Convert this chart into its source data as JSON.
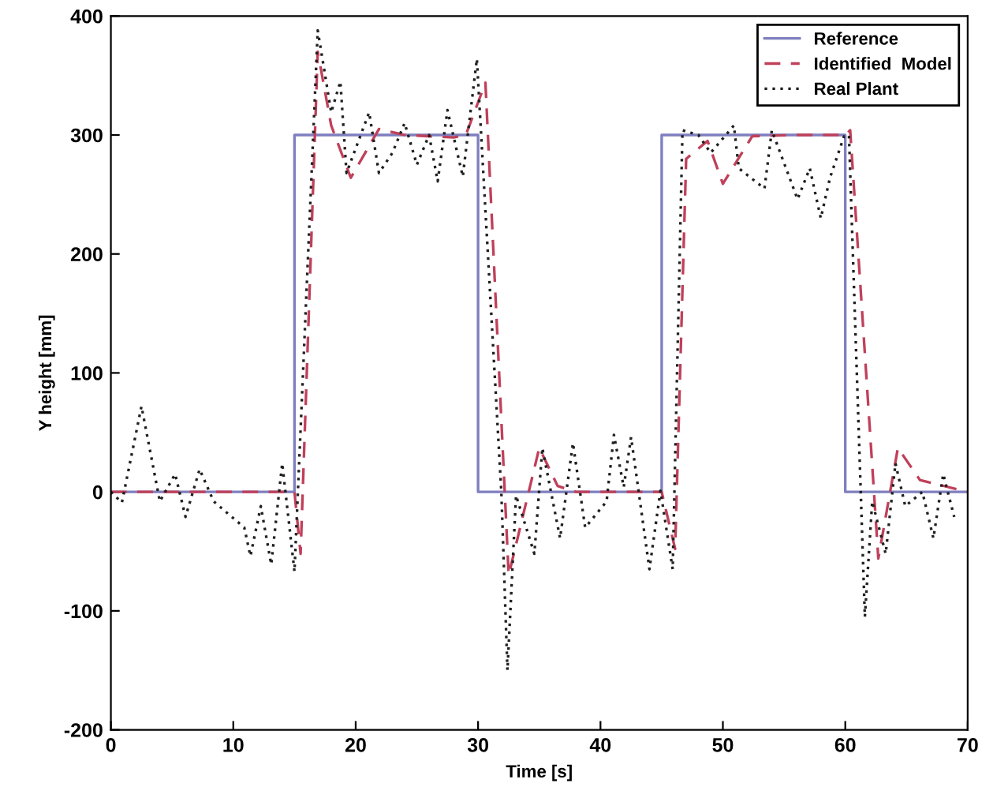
{
  "chart_data": {
    "type": "line",
    "xlabel": "Time [s]",
    "ylabel": "Y height [mm]",
    "xlim": [
      0,
      70
    ],
    "ylim": [
      -200,
      400
    ],
    "xticks": [
      0,
      10,
      20,
      30,
      40,
      50,
      60,
      70
    ],
    "yticks": [
      -200,
      -100,
      0,
      100,
      200,
      300,
      400
    ],
    "grid": false,
    "legend": "top right",
    "marker": "none",
    "series": [
      {
        "name": "Reference",
        "color": "#7f7fc0",
        "line_style": "solid",
        "x": [
          0,
          15,
          15,
          30,
          30,
          45,
          45,
          60,
          60,
          70
        ],
        "values": [
          0,
          0,
          300,
          300,
          0,
          0,
          300,
          300,
          0,
          0
        ]
      },
      {
        "name": "Identified  Model",
        "color": "#c0405a",
        "line_style": "dashed",
        "x": [
          0,
          15,
          15.5,
          16.9,
          18,
          19.6,
          21.9,
          24,
          28,
          29,
          30.6,
          32.5,
          35,
          36.5,
          38,
          40,
          44,
          45,
          46.1,
          47,
          48.75,
          50,
          52.4,
          56,
          60,
          60.4,
          62.7,
          64.3,
          66.1,
          70
        ],
        "values": [
          0,
          0,
          -52,
          370,
          308,
          264,
          305,
          300,
          298,
          300,
          344,
          -70,
          37,
          5,
          0,
          0,
          0,
          0,
          -48,
          280,
          295,
          259,
          299,
          300,
          300,
          304,
          -56,
          37,
          10,
          0
        ]
      },
      {
        "name": "Real Plant",
        "color": "#202020",
        "line_style": "dotted",
        "x": [
          0,
          0.9,
          2.5,
          4,
          5.25,
          6.1,
          7.25,
          8.4,
          10.9,
          11.4,
          12.25,
          13.1,
          14,
          15,
          16.9,
          18,
          18.75,
          19.25,
          21.1,
          21.9,
          23,
          24,
          25,
          26,
          26.7,
          27.5,
          28.75,
          29.9,
          31.9,
          32.4,
          33.1,
          34.6,
          35.25,
          36.7,
          37.75,
          38.75,
          40.5,
          41.1,
          41.9,
          42.5,
          44,
          44.9,
          45.9,
          46.7,
          48,
          49,
          50.9,
          51.3,
          53.4,
          54,
          56.1,
          57.1,
          58,
          58.75,
          59.9,
          60.3,
          61.6,
          62.2,
          63.3,
          64.1,
          64.9,
          66.3,
          67.2,
          68,
          68.9
        ],
        "values": [
          0,
          -9,
          72,
          -8,
          15,
          -21,
          19,
          -8,
          -30,
          -54,
          -12,
          -61,
          24,
          -67,
          388,
          319,
          345,
          268,
          319,
          268,
          285,
          310,
          275,
          300,
          261,
          321,
          265,
          364,
          0,
          -150,
          -3,
          -52,
          37,
          -39,
          41,
          -30,
          -8,
          48,
          4,
          46,
          -65,
          1,
          -65,
          304,
          300,
          285,
          308,
          272,
          255,
          304,
          246,
          272,
          230,
          264,
          299,
          300,
          -105,
          -8,
          -52,
          24,
          -12,
          0,
          -39,
          15,
          -21
        ]
      }
    ]
  }
}
